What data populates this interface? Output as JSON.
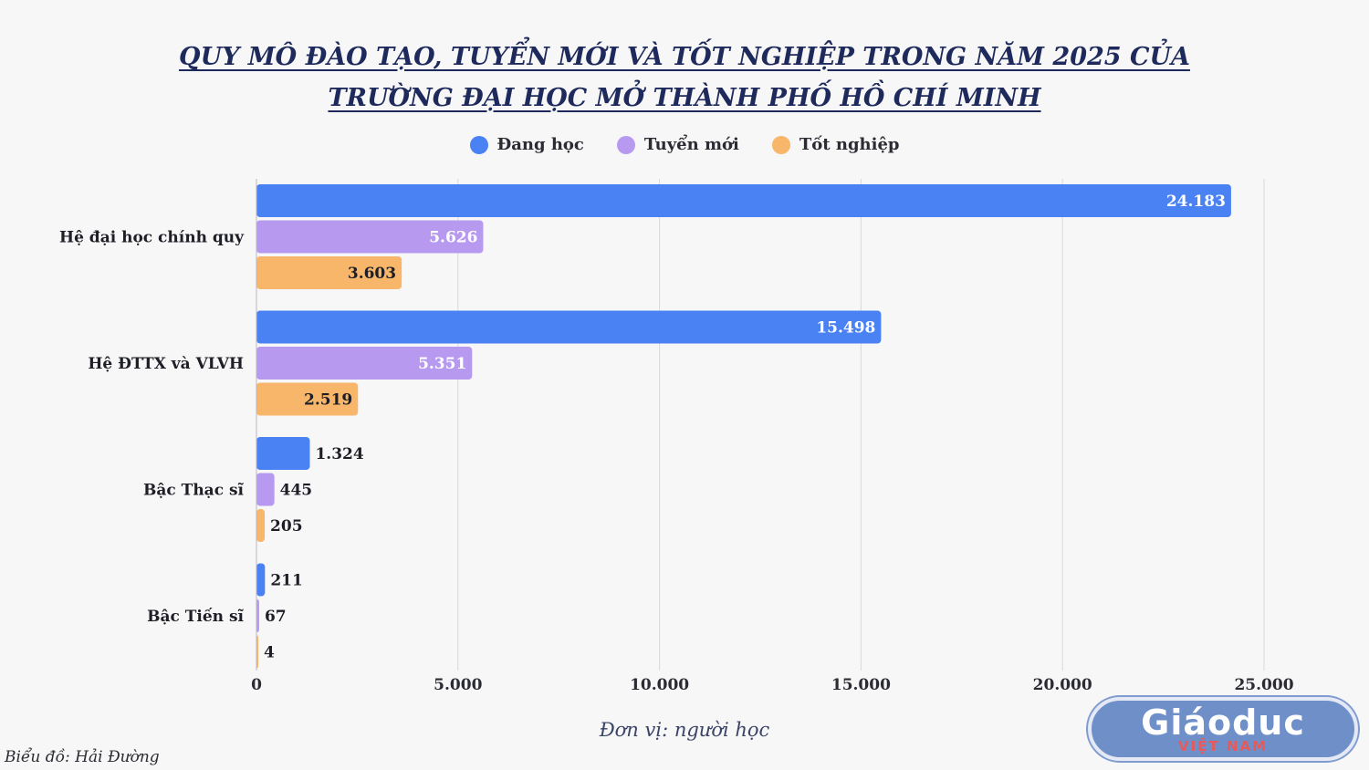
{
  "header": {
    "title_line1": "QUY MÔ ĐÀO TẠO, TUYỂN MỚI VÀ TỐT NGHIỆP TRONG NĂM 2025 CỦA",
    "title_line2": "TRƯỜNG ĐẠI HỌC MỞ THÀNH PHỐ HỒ CHÍ MINH"
  },
  "legend": [
    {
      "label": "Đang học",
      "color": "#4a82f3"
    },
    {
      "label": "Tuyển mới",
      "color": "#b79af0"
    },
    {
      "label": "Tốt nghiệp",
      "color": "#f7b66a"
    }
  ],
  "chart_data": {
    "type": "bar",
    "orientation": "horizontal",
    "categories": [
      "Hệ đại học chính quy",
      "Hệ ĐTTX và VLVH",
      "Bậc Thạc sĩ",
      "Bậc Tiến sĩ"
    ],
    "series": [
      {
        "name": "Đang học",
        "color": "#4a82f3",
        "values": [
          24183,
          15498,
          1324,
          211
        ],
        "labels": [
          "24.183",
          "15.498",
          "1.324",
          "211"
        ]
      },
      {
        "name": "Tuyển mới",
        "color": "#b79af0",
        "values": [
          5626,
          5351,
          445,
          67
        ],
        "labels": [
          "5.626",
          "5.351",
          "445",
          "67"
        ]
      },
      {
        "name": "Tốt nghiệp",
        "color": "#f7b66a",
        "values": [
          3603,
          2519,
          205,
          4
        ],
        "labels": [
          "3.603",
          "2.519",
          "205",
          "4"
        ]
      }
    ],
    "xlim": [
      0,
      25000
    ],
    "xticks": [
      0,
      5000,
      10000,
      15000,
      20000,
      25000
    ],
    "xtick_labels": [
      "0",
      "5.000",
      "10.000",
      "15.000",
      "20.000",
      "25.000"
    ],
    "grid": true,
    "legend_position": "top-center"
  },
  "footer": {
    "unit": "Đơn vị: người học",
    "credit": "Biểu đồ: Hải Đường"
  },
  "logo": {
    "main": "Giáoduc",
    "sub": "VIỆT NAM"
  }
}
